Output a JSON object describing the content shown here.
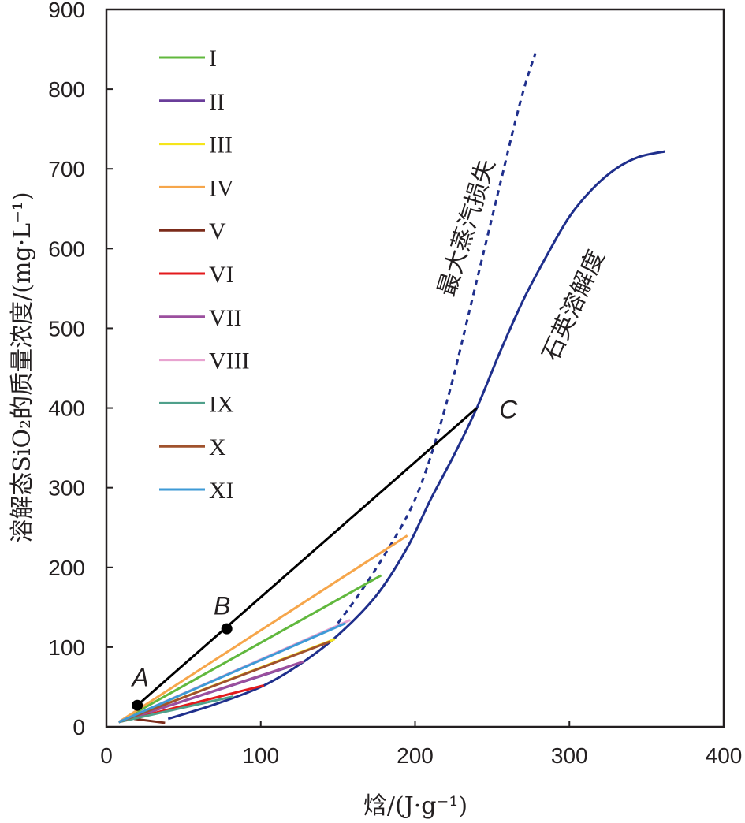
{
  "chart_data": {
    "type": "line",
    "xlabel": "焓/(J·g⁻¹)",
    "ylabel": "溶解态SiO₂的质量浓度/(mg·L⁻¹)",
    "xlim": [
      0,
      400
    ],
    "ylim": [
      0,
      900
    ],
    "xticks": [
      "0",
      "100",
      "200",
      "300",
      "400"
    ],
    "yticks": [
      "0",
      "100",
      "200",
      "300",
      "400",
      "500",
      "600",
      "700",
      "800",
      "900"
    ],
    "grid": false,
    "legend_position": "top-left",
    "series": [
      {
        "name": "I",
        "color": "#61b83e",
        "x": [
          8,
          178
        ],
        "y": [
          6,
          190
        ]
      },
      {
        "name": "II",
        "color": "#6a3d9a",
        "x": [
          8,
          118
        ],
        "y": [
          6,
          75
        ]
      },
      {
        "name": "III",
        "color": "#f5e51b",
        "x": [
          8,
          148
        ],
        "y": [
          6,
          110
        ]
      },
      {
        "name": "IV",
        "color": "#f6a64b",
        "x": [
          8,
          195
        ],
        "y": [
          6,
          240
        ]
      },
      {
        "name": "V",
        "color": "#7b2b1a",
        "x": [
          18,
          38
        ],
        "y": [
          10,
          5
        ]
      },
      {
        "name": "VI",
        "color": "#e31a1c",
        "x": [
          8,
          102
        ],
        "y": [
          6,
          52
        ]
      },
      {
        "name": "VII",
        "color": "#9b4f9e",
        "x": [
          8,
          128
        ],
        "y": [
          6,
          82
        ]
      },
      {
        "name": "VIII",
        "color": "#e8a3d0",
        "x": [
          8,
          158
        ],
        "y": [
          6,
          134
        ]
      },
      {
        "name": "IX",
        "color": "#4fa08b",
        "x": [
          8,
          82
        ],
        "y": [
          6,
          38
        ]
      },
      {
        "name": "X",
        "color": "#a0522d",
        "x": [
          8,
          145
        ],
        "y": [
          6,
          107
        ]
      },
      {
        "name": "XI",
        "color": "#3e9ad6",
        "x": [
          8,
          155
        ],
        "y": [
          6,
          130
        ]
      }
    ],
    "reference_line": {
      "color": "#000000",
      "x": [
        20,
        240
      ],
      "y": [
        27,
        400
      ]
    },
    "points": [
      {
        "label": "A",
        "x": 20,
        "y": 27
      },
      {
        "label": "B",
        "x": 78,
        "y": 123
      },
      {
        "label": "C",
        "x": 240,
        "y": 400
      }
    ],
    "curves": [
      {
        "label": "最大蒸汽损失",
        "style": "dashed",
        "color": "#1f2f8c",
        "x": [
          150,
          165,
          180,
          195,
          205,
          215,
          225,
          235,
          245,
          255,
          265,
          272,
          278
        ],
        "y": [
          130,
          170,
          215,
          265,
          310,
          370,
          440,
          520,
          600,
          680,
          760,
          810,
          845
        ]
      },
      {
        "label": "石英溶解度",
        "style": "solid",
        "color": "#1f2f8c",
        "x": [
          40,
          70,
          100,
          125,
          150,
          175,
          195,
          210,
          225,
          240,
          255,
          270,
          285,
          300,
          315,
          330,
          345,
          362
        ],
        "y": [
          10,
          28,
          50,
          78,
          115,
          165,
          225,
          285,
          340,
          400,
          470,
          535,
          590,
          640,
          675,
          700,
          715,
          722
        ]
      }
    ]
  }
}
